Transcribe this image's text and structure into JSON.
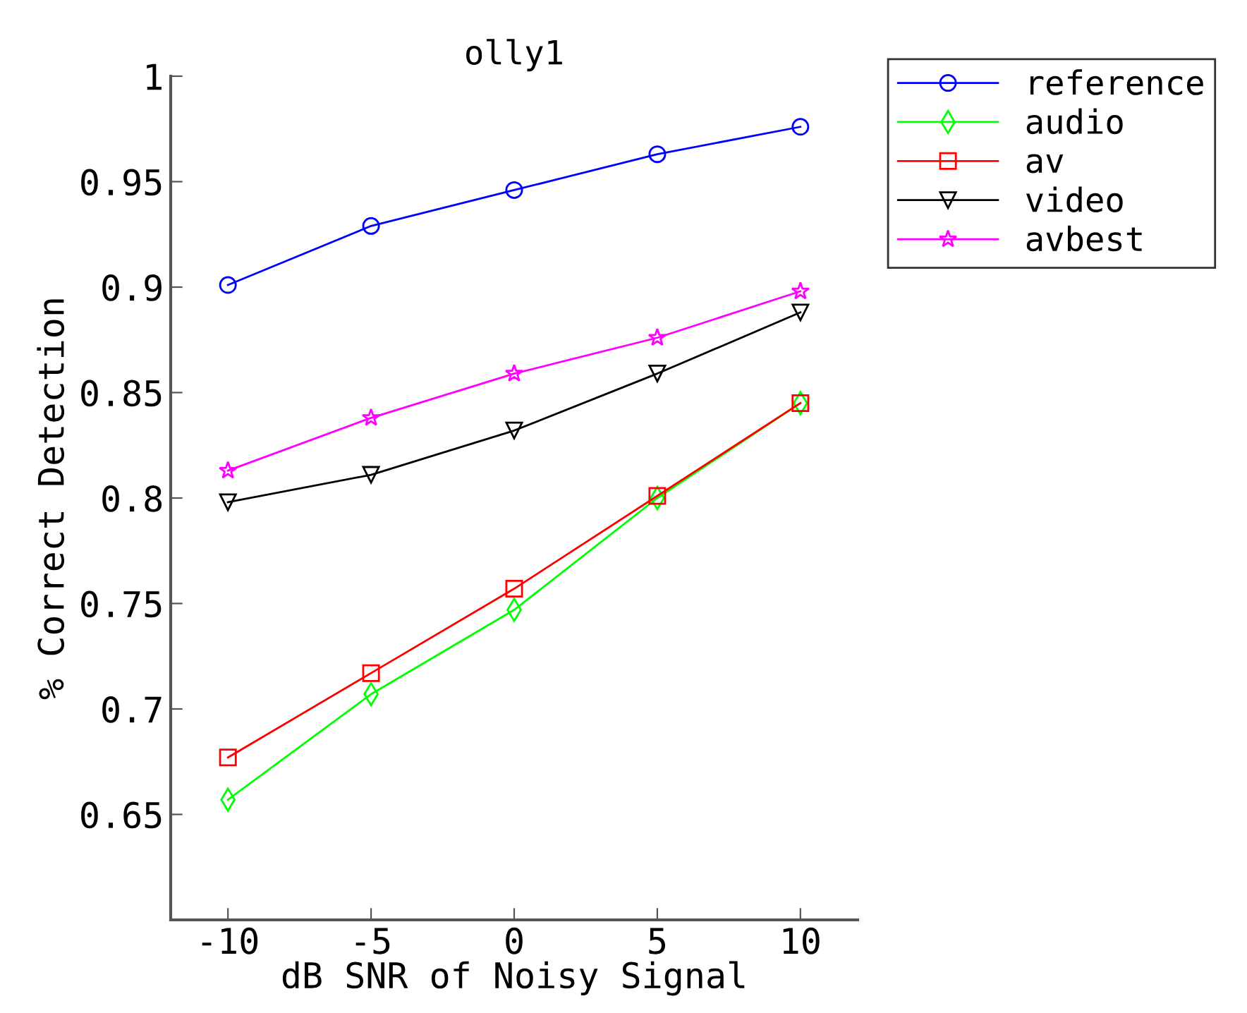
{
  "chart_data": {
    "type": "line",
    "title": "olly1",
    "xlabel": "dB SNR of Noisy Signal",
    "ylabel": "% Correct Detection",
    "x": [
      -10,
      -5,
      0,
      5,
      10
    ],
    "series": [
      {
        "name": "reference",
        "color": "#0000ff",
        "marker": "circle",
        "values": [
          0.901,
          0.929,
          0.946,
          0.963,
          0.976
        ]
      },
      {
        "name": "audio",
        "color": "#00ff00",
        "marker": "diamond",
        "values": [
          0.657,
          0.707,
          0.747,
          0.8,
          0.845
        ]
      },
      {
        "name": "av",
        "color": "#ff0000",
        "marker": "square",
        "values": [
          0.677,
          0.717,
          0.757,
          0.801,
          0.845
        ]
      },
      {
        "name": "video",
        "color": "#000000",
        "marker": "triangle",
        "values": [
          0.798,
          0.811,
          0.832,
          0.859,
          0.888
        ]
      },
      {
        "name": "avbest",
        "color": "#ff00ff",
        "marker": "star",
        "values": [
          0.813,
          0.838,
          0.859,
          0.876,
          0.898
        ]
      }
    ],
    "xlim": [
      -12,
      12
    ],
    "xticks": [
      -10,
      -5,
      0,
      5,
      10
    ],
    "ylim": [
      0.6,
      1
    ],
    "yticks": [
      0.65,
      0.7,
      0.75,
      0.8,
      0.85,
      0.9,
      0.95,
      1
    ],
    "grid": false,
    "legend": "top right",
    "line_style": "solid"
  }
}
